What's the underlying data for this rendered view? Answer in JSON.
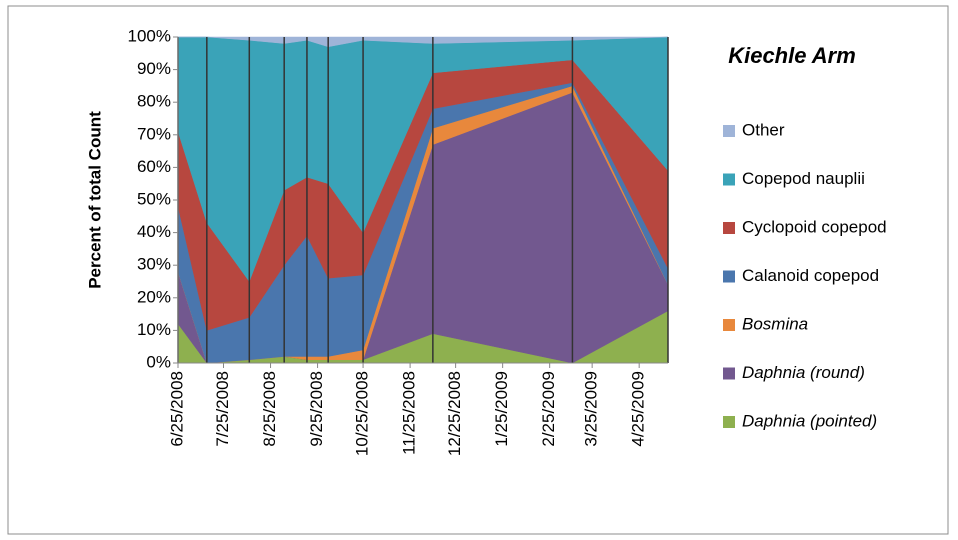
{
  "chart_data": {
    "type": "stacked-area",
    "title": "Kiechle Arm",
    "ylabel": "Percent of total Count",
    "x": [
      "6/25/2008",
      "7/14/2008",
      "8/11/2008",
      "9/3/2008",
      "9/18/2008",
      "10/2/2008",
      "10/25/2008",
      "12/10/2008",
      "3/12/2009",
      "5/14/2009"
    ],
    "xlim": [
      "6/25/2008",
      "5/14/2009"
    ],
    "xticks": [
      "6/25/2008",
      "7/25/2008",
      "8/25/2008",
      "9/25/2008",
      "10/25/2008",
      "11/25/2008",
      "12/25/2008",
      "1/25/2009",
      "2/25/2009",
      "3/25/2009",
      "4/25/2009"
    ],
    "ylim": [
      0,
      100
    ],
    "yticks": [
      {
        "value": 0,
        "label": "0%"
      },
      {
        "value": 10,
        "label": "10%"
      },
      {
        "value": 20,
        "label": "20%"
      },
      {
        "value": 30,
        "label": "30%"
      },
      {
        "value": 40,
        "label": "40%"
      },
      {
        "value": 50,
        "label": "50%"
      },
      {
        "value": 60,
        "label": "60%"
      },
      {
        "value": 70,
        "label": "70%"
      },
      {
        "value": 80,
        "label": "80%"
      },
      {
        "value": 90,
        "label": "90%"
      },
      {
        "value": 100,
        "label": "100%"
      }
    ],
    "drop_lines": true,
    "series": [
      {
        "name": "Daphnia (pointed)",
        "italic": true,
        "color": "#8eb04f",
        "values": [
          12,
          0,
          1,
          2,
          1,
          1,
          1,
          9,
          0,
          16
        ]
      },
      {
        "name": "Daphnia (round)",
        "italic": true,
        "color": "#72588f",
        "values": [
          16,
          0,
          0,
          0,
          0,
          0,
          0,
          58,
          83,
          8
        ]
      },
      {
        "name": "Bosmina",
        "italic": true,
        "color": "#e8883c",
        "values": [
          0,
          0,
          0,
          0,
          1,
          1,
          3,
          5,
          2,
          0
        ]
      },
      {
        "name": "Calanoid copepod",
        "italic": false,
        "color": "#4a76ad",
        "values": [
          20,
          10,
          13,
          28,
          37,
          24,
          23,
          6,
          1,
          5
        ]
      },
      {
        "name": "Cyclopoid copepod",
        "italic": false,
        "color": "#b7473f",
        "values": [
          23,
          33,
          11,
          23,
          18,
          29,
          13,
          11,
          7,
          30
        ]
      },
      {
        "name": "Copepod nauplii",
        "italic": false,
        "color": "#3aa3b8",
        "values": [
          29,
          57,
          74,
          45,
          42,
          42,
          59,
          9,
          6,
          41
        ]
      },
      {
        "name": "Other",
        "italic": false,
        "color": "#9fb4d8",
        "values": [
          0,
          0,
          1,
          2,
          1,
          3,
          1,
          2,
          1,
          0
        ]
      }
    ]
  }
}
